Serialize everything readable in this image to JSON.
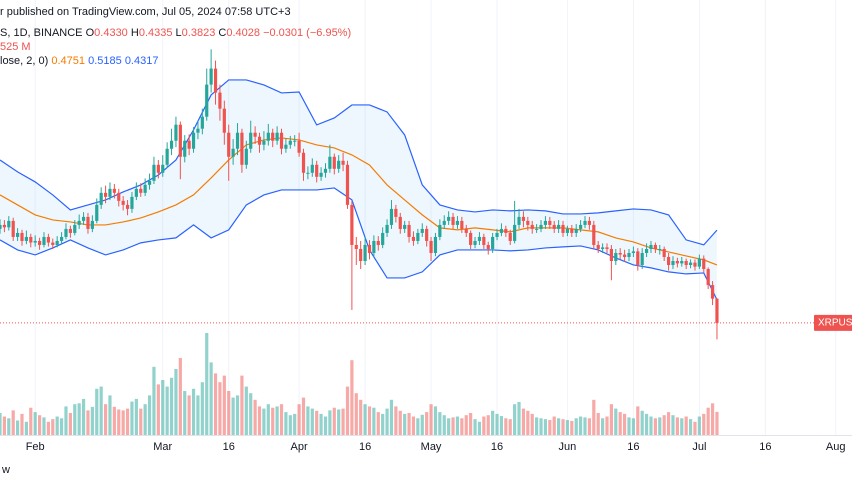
{
  "header": {
    "published": "r published on TradingView.com, Jul 05, 2024 07:58 UTC+3",
    "symbol": "S, 1D, BINANCE",
    "ohlc": [
      {
        "key": "O",
        "label": "0.4330"
      },
      {
        "key": "H",
        "label": "0.4335"
      },
      {
        "key": "L",
        "label": "0.3823"
      },
      {
        "key": "C",
        "label": "0.4028"
      }
    ],
    "change": "−0.0301 (−6.95%)",
    "volume": "525 M",
    "indicator": "lose, 2, 0)"
  },
  "footer": "w",
  "chart_data": {
    "type": "candlestick",
    "symbol_label": "XRPUSD",
    "colors": {
      "up": "#26a69a",
      "down": "#ef5350"
    },
    "xlim": [
      24,
      217.7
    ],
    "xticks": [
      {
        "value": 32,
        "label": "Feb"
      },
      {
        "value": 61,
        "label": "Mar"
      },
      {
        "value": 76,
        "label": "16"
      },
      {
        "value": 92,
        "label": "Apr"
      },
      {
        "value": 107,
        "label": "16"
      },
      {
        "value": 122,
        "label": "May"
      },
      {
        "value": 137,
        "label": "16"
      },
      {
        "value": 153,
        "label": "Jun"
      },
      {
        "value": 168,
        "label": "16"
      },
      {
        "value": 183,
        "label": "Jul"
      },
      {
        "value": 198,
        "label": "16"
      },
      {
        "value": 214,
        "label": "Aug"
      }
    ],
    "ylim": [
      0.263,
      0.8055
    ],
    "x": [
      24,
      25,
      26,
      27,
      28,
      29,
      30,
      31,
      32,
      33,
      34,
      35,
      36,
      37,
      38,
      39,
      40,
      41,
      42,
      43,
      44,
      45,
      46,
      47,
      48,
      49,
      50,
      51,
      52,
      53,
      54,
      55,
      56,
      57,
      58,
      59,
      60,
      61,
      62,
      63,
      64,
      65,
      66,
      67,
      68,
      69,
      70,
      71,
      72,
      73,
      74,
      75,
      76,
      77,
      78,
      79,
      80,
      81,
      82,
      83,
      84,
      85,
      86,
      87,
      88,
      89,
      90,
      91,
      92,
      93,
      94,
      95,
      96,
      97,
      98,
      99,
      100,
      101,
      102,
      103,
      104,
      105,
      106,
      107,
      108,
      109,
      110,
      111,
      112,
      113,
      114,
      115,
      116,
      117,
      118,
      119,
      120,
      121,
      122,
      123,
      124,
      125,
      126,
      127,
      128,
      129,
      130,
      131,
      132,
      133,
      134,
      135,
      136,
      137,
      138,
      139,
      140,
      141,
      142,
      143,
      144,
      145,
      146,
      147,
      148,
      149,
      150,
      151,
      152,
      153,
      154,
      155,
      156,
      157,
      158,
      159,
      160,
      161,
      162,
      163,
      164,
      165,
      166,
      167,
      168,
      169,
      170,
      171,
      172,
      173,
      174,
      175,
      176,
      177,
      178,
      179,
      180,
      181,
      182,
      183,
      184,
      185,
      186,
      187
    ],
    "open": [
      0.52,
      0.525,
      0.522,
      0.53,
      0.51,
      0.515,
      0.505,
      0.51,
      0.503,
      0.505,
      0.5,
      0.51,
      0.503,
      0.5,
      0.505,
      0.51,
      0.52,
      0.515,
      0.525,
      0.53,
      0.535,
      0.52,
      0.53,
      0.55,
      0.565,
      0.56,
      0.57,
      0.565,
      0.555,
      0.55,
      0.545,
      0.56,
      0.57,
      0.565,
      0.575,
      0.58,
      0.6,
      0.59,
      0.6,
      0.62,
      0.63,
      0.65,
      0.61,
      0.63,
      0.62,
      0.64,
      0.645,
      0.66,
      0.7,
      0.72,
      0.69,
      0.67,
      0.64,
      0.61,
      0.62,
      0.64,
      0.6,
      0.62,
      0.64,
      0.635,
      0.625,
      0.63,
      0.64,
      0.63,
      0.64,
      0.62,
      0.625,
      0.63,
      0.63,
      0.615,
      0.59,
      0.59,
      0.6,
      0.585,
      0.59,
      0.595,
      0.61,
      0.595,
      0.605,
      0.6,
      0.55,
      0.5,
      0.495,
      0.48,
      0.5,
      0.49,
      0.505,
      0.5,
      0.515,
      0.525,
      0.545,
      0.535,
      0.52,
      0.525,
      0.51,
      0.505,
      0.515,
      0.52,
      0.505,
      0.49,
      0.51,
      0.525,
      0.53,
      0.535,
      0.525,
      0.53,
      0.52,
      0.515,
      0.5,
      0.505,
      0.51,
      0.5,
      0.495,
      0.51,
      0.515,
      0.52,
      0.515,
      0.505,
      0.525,
      0.535,
      0.53,
      0.525,
      0.52,
      0.52,
      0.525,
      0.53,
      0.525,
      0.52,
      0.525,
      0.515,
      0.52,
      0.515,
      0.52,
      0.525,
      0.53,
      0.525,
      0.5,
      0.495,
      0.497,
      0.495,
      0.48,
      0.49,
      0.488,
      0.485,
      0.49,
      0.492,
      0.475,
      0.49,
      0.495,
      0.5,
      0.495,
      0.495,
      0.485,
      0.475,
      0.48,
      0.477,
      0.48,
      0.475,
      0.478,
      0.473,
      0.483,
      0.47,
      0.45,
      0.433
    ],
    "high": [
      0.532,
      0.531,
      0.536,
      0.534,
      0.521,
      0.519,
      0.518,
      0.514,
      0.512,
      0.509,
      0.516,
      0.514,
      0.508,
      0.511,
      0.516,
      0.527,
      0.524,
      0.531,
      0.538,
      0.541,
      0.54,
      0.537,
      0.558,
      0.572,
      0.574,
      0.578,
      0.576,
      0.57,
      0.561,
      0.556,
      0.566,
      0.578,
      0.577,
      0.583,
      0.589,
      0.61,
      0.606,
      0.612,
      0.628,
      0.645,
      0.66,
      0.654,
      0.637,
      0.638,
      0.647,
      0.655,
      0.67,
      0.72,
      0.744,
      0.73,
      0.7,
      0.68,
      0.65,
      0.632,
      0.652,
      0.645,
      0.63,
      0.655,
      0.648,
      0.64,
      0.642,
      0.651,
      0.645,
      0.648,
      0.645,
      0.633,
      0.636,
      0.637,
      0.64,
      0.62,
      0.598,
      0.608,
      0.605,
      0.597,
      0.602,
      0.625,
      0.614,
      0.612,
      0.615,
      0.605,
      0.555,
      0.51,
      0.505,
      0.51,
      0.506,
      0.512,
      0.511,
      0.522,
      0.532,
      0.556,
      0.55,
      0.54,
      0.53,
      0.53,
      0.517,
      0.52,
      0.527,
      0.524,
      0.51,
      0.515,
      0.532,
      0.537,
      0.542,
      0.54,
      0.536,
      0.535,
      0.525,
      0.518,
      0.51,
      0.516,
      0.514,
      0.504,
      0.515,
      0.52,
      0.527,
      0.524,
      0.519,
      0.555,
      0.545,
      0.542,
      0.535,
      0.53,
      0.526,
      0.531,
      0.536,
      0.535,
      0.53,
      0.531,
      0.53,
      0.524,
      0.525,
      0.526,
      0.531,
      0.536,
      0.535,
      0.53,
      0.505,
      0.502,
      0.502,
      0.5,
      0.495,
      0.496,
      0.494,
      0.495,
      0.498,
      0.496,
      0.496,
      0.502,
      0.505,
      0.503,
      0.5,
      0.498,
      0.49,
      0.486,
      0.484,
      0.485,
      0.483,
      0.482,
      0.482,
      0.488,
      0.487,
      0.472,
      0.455,
      0.4335
    ],
    "low": [
      0.514,
      0.516,
      0.518,
      0.505,
      0.505,
      0.499,
      0.501,
      0.497,
      0.498,
      0.494,
      0.497,
      0.498,
      0.495,
      0.497,
      0.502,
      0.507,
      0.509,
      0.512,
      0.52,
      0.525,
      0.514,
      0.516,
      0.527,
      0.545,
      0.552,
      0.556,
      0.558,
      0.548,
      0.543,
      0.537,
      0.54,
      0.556,
      0.56,
      0.561,
      0.569,
      0.576,
      0.583,
      0.585,
      0.596,
      0.612,
      0.622,
      0.582,
      0.603,
      0.612,
      0.615,
      0.632,
      0.638,
      0.655,
      0.69,
      0.675,
      0.655,
      0.625,
      0.58,
      0.6,
      0.612,
      0.59,
      0.595,
      0.615,
      0.626,
      0.615,
      0.618,
      0.624,
      0.622,
      0.625,
      0.613,
      0.615,
      0.62,
      0.623,
      0.61,
      0.58,
      0.582,
      0.585,
      0.578,
      0.58,
      0.584,
      0.59,
      0.588,
      0.59,
      0.592,
      0.545,
      0.419,
      0.475,
      0.47,
      0.475,
      0.482,
      0.485,
      0.493,
      0.496,
      0.51,
      0.52,
      0.528,
      0.514,
      0.515,
      0.503,
      0.499,
      0.501,
      0.51,
      0.498,
      0.48,
      0.486,
      0.506,
      0.52,
      0.525,
      0.52,
      0.52,
      0.515,
      0.51,
      0.495,
      0.496,
      0.5,
      0.495,
      0.488,
      0.49,
      0.506,
      0.511,
      0.51,
      0.5,
      0.502,
      0.52,
      0.522,
      0.518,
      0.514,
      0.515,
      0.516,
      0.52,
      0.52,
      0.515,
      0.515,
      0.51,
      0.511,
      0.51,
      0.51,
      0.516,
      0.521,
      0.519,
      0.495,
      0.49,
      0.49,
      0.49,
      0.456,
      0.475,
      0.482,
      0.479,
      0.48,
      0.485,
      0.468,
      0.47,
      0.485,
      0.49,
      0.49,
      0.488,
      0.48,
      0.468,
      0.47,
      0.472,
      0.473,
      0.47,
      0.471,
      0.468,
      0.47,
      0.465,
      0.445,
      0.425,
      0.3823
    ],
    "close": [
      0.525,
      0.522,
      0.53,
      0.51,
      0.515,
      0.505,
      0.51,
      0.503,
      0.505,
      0.5,
      0.51,
      0.503,
      0.5,
      0.505,
      0.51,
      0.52,
      0.515,
      0.525,
      0.53,
      0.535,
      0.52,
      0.53,
      0.55,
      0.565,
      0.56,
      0.57,
      0.565,
      0.555,
      0.55,
      0.545,
      0.56,
      0.57,
      0.565,
      0.575,
      0.58,
      0.6,
      0.59,
      0.6,
      0.62,
      0.63,
      0.65,
      0.61,
      0.63,
      0.62,
      0.64,
      0.645,
      0.66,
      0.7,
      0.72,
      0.69,
      0.67,
      0.64,
      0.61,
      0.62,
      0.64,
      0.6,
      0.62,
      0.64,
      0.635,
      0.625,
      0.63,
      0.64,
      0.63,
      0.64,
      0.62,
      0.625,
      0.63,
      0.63,
      0.615,
      0.59,
      0.59,
      0.6,
      0.585,
      0.59,
      0.595,
      0.61,
      0.595,
      0.605,
      0.6,
      0.55,
      0.5,
      0.495,
      0.48,
      0.5,
      0.49,
      0.505,
      0.5,
      0.515,
      0.525,
      0.545,
      0.535,
      0.52,
      0.525,
      0.51,
      0.505,
      0.515,
      0.52,
      0.505,
      0.49,
      0.51,
      0.525,
      0.53,
      0.535,
      0.525,
      0.53,
      0.52,
      0.515,
      0.5,
      0.505,
      0.51,
      0.5,
      0.495,
      0.51,
      0.515,
      0.52,
      0.515,
      0.505,
      0.525,
      0.535,
      0.53,
      0.525,
      0.52,
      0.52,
      0.525,
      0.53,
      0.525,
      0.52,
      0.525,
      0.515,
      0.52,
      0.515,
      0.52,
      0.525,
      0.53,
      0.525,
      0.5,
      0.495,
      0.497,
      0.495,
      0.48,
      0.49,
      0.488,
      0.485,
      0.49,
      0.492,
      0.475,
      0.49,
      0.495,
      0.5,
      0.495,
      0.495,
      0.485,
      0.475,
      0.48,
      0.477,
      0.48,
      0.475,
      0.478,
      0.473,
      0.483,
      0.47,
      0.45,
      0.433,
      0.4028
    ],
    "volume": {
      "ylim": [
        0,
        3000
      ],
      "values": [
        500,
        420,
        380,
        560,
        330,
        480,
        300,
        620,
        520,
        450,
        400,
        300,
        360,
        420,
        380,
        650,
        500,
        700,
        720,
        820,
        560,
        640,
        1050,
        1100,
        700,
        900,
        640,
        580,
        560,
        600,
        760,
        820,
        600,
        700,
        900,
        1550,
        1150,
        1250,
        1100,
        1300,
        1500,
        1750,
        1000,
        900,
        1050,
        900,
        1200,
        2318,
        1650,
        1400,
        1200,
        1350,
        1000,
        850,
        900,
        1350,
        1100,
        950,
        800,
        650,
        600,
        700,
        620,
        650,
        700,
        520,
        450,
        480,
        700,
        850,
        650,
        600,
        550,
        480,
        420,
        560,
        620,
        580,
        600,
        1100,
        1700,
        950,
        800,
        700,
        650,
        620,
        520,
        480,
        600,
        800,
        650,
        550,
        480,
        500,
        420,
        380,
        460,
        520,
        700,
        650,
        520,
        450,
        380,
        400,
        420,
        380,
        450,
        500,
        360,
        300,
        420,
        450,
        550,
        480,
        430,
        380,
        360,
        700,
        750,
        600,
        550,
        480,
        400,
        380,
        360,
        340,
        420,
        380,
        360,
        340,
        320,
        380,
        420,
        400,
        380,
        800,
        500,
        380,
        420,
        700,
        600,
        520,
        480,
        400,
        380,
        650,
        550,
        480,
        420,
        380,
        400,
        450,
        520,
        450,
        400,
        380,
        420,
        360,
        300,
        420,
        480,
        620,
        720,
        525
      ]
    },
    "bands": {
      "x": [
        24,
        28,
        32,
        36,
        40,
        44,
        48,
        52,
        56,
        60,
        64,
        68,
        72,
        76,
        80,
        84,
        88,
        92,
        96,
        100,
        104,
        108,
        112,
        116,
        120,
        124,
        128,
        132,
        136,
        140,
        144,
        148,
        152,
        156,
        160,
        164,
        168,
        172,
        176,
        180,
        184,
        187
      ],
      "fill": "#2196f3",
      "upper": {
        "color": "#2962ff",
        "values": [
          0.606,
          0.5911,
          0.5786,
          0.5624,
          0.5437,
          0.5499,
          0.5562,
          0.5661,
          0.5749,
          0.5873,
          0.606,
          0.6435,
          0.6871,
          0.7058,
          0.7058,
          0.6996,
          0.6896,
          0.6908,
          0.6497,
          0.6584,
          0.6746,
          0.6746,
          0.6659,
          0.6372,
          0.5749,
          0.5499,
          0.5437,
          0.5412,
          0.5437,
          0.5425,
          0.5437,
          0.5425,
          0.5387,
          0.5387,
          0.54,
          0.5425,
          0.5449,
          0.5437,
          0.5375,
          0.5063,
          0.5001,
          0.5185
        ]
      },
      "basis": {
        "color": "#f57c00",
        "values": [
          0.5624,
          0.5499,
          0.5375,
          0.5312,
          0.5287,
          0.525,
          0.525,
          0.5287,
          0.5337,
          0.5412,
          0.5499,
          0.5624,
          0.5836,
          0.606,
          0.6247,
          0.631,
          0.6335,
          0.631,
          0.6247,
          0.621,
          0.6123,
          0.5998,
          0.5749,
          0.5562,
          0.5375,
          0.5213,
          0.5188,
          0.5213,
          0.5188,
          0.5163,
          0.5213,
          0.5213,
          0.5213,
          0.5188,
          0.5163,
          0.5088,
          0.5038,
          0.4963,
          0.4913,
          0.4863,
          0.4814,
          0.4751
        ]
      },
      "lower": {
        "color": "#2962ff",
        "values": [
          0.5063,
          0.4938,
          0.4876,
          0.4963,
          0.5063,
          0.4963,
          0.4876,
          0.4938,
          0.5026,
          0.5063,
          0.5088,
          0.525,
          0.5088,
          0.5188,
          0.5499,
          0.5624,
          0.5686,
          0.5686,
          0.5686,
          0.5711,
          0.5562,
          0.4938,
          0.4589,
          0.4589,
          0.4664,
          0.4876,
          0.4938,
          0.4938,
          0.4938,
          0.4926,
          0.4938,
          0.4963,
          0.4976,
          0.4988,
          0.4938,
          0.4838,
          0.4751,
          0.4714,
          0.4664,
          0.4639,
          0.4651,
          0.4317
        ]
      }
    }
  }
}
